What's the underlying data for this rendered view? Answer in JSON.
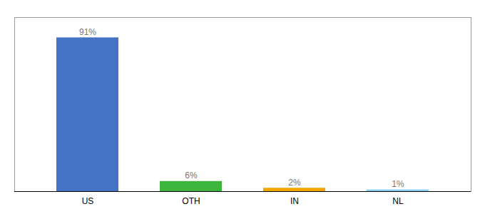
{
  "chart_data": {
    "type": "bar",
    "categories": [
      "US",
      "OTH",
      "IN",
      "NL"
    ],
    "values": [
      91,
      6,
      2,
      1
    ],
    "value_labels": [
      "91%",
      "6%",
      "2%",
      "1%"
    ],
    "colors": [
      "#4472c4",
      "#3db53d",
      "#f0a500",
      "#85d0f0"
    ],
    "ylim": [
      0,
      103
    ],
    "yticks": [],
    "tick_labels": "x",
    "data_labels": true,
    "grid": false
  }
}
